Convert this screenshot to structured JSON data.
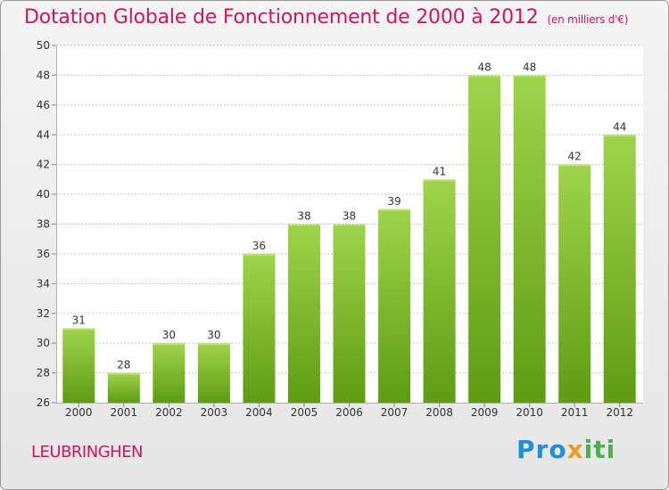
{
  "title": "Dotation Globale de Fonctionnement de 2000 à 2012",
  "subtitle": "(en milliers d'€)",
  "commune": "LEUBRINGHEN",
  "logo": {
    "part1": "Pro",
    "part2": "x",
    "part3": "iti"
  },
  "colors": {
    "title": "#d4145a",
    "bar_top": "#9fd44a",
    "bar_bottom": "#5e9c14",
    "grid": "#c8c8c8"
  },
  "chart_data": {
    "type": "bar",
    "categories": [
      "2000",
      "2001",
      "2002",
      "2003",
      "2004",
      "2005",
      "2006",
      "2007",
      "2008",
      "2009",
      "2010",
      "2011",
      "2012"
    ],
    "values": [
      31,
      28,
      30,
      30,
      36,
      38,
      38,
      39,
      41,
      48,
      48,
      42,
      44
    ],
    "title": "Dotation Globale de Fonctionnement de 2000 à 2012",
    "subtitle": "(en milliers d'€)",
    "ylim": [
      26,
      50
    ],
    "yticks": [
      26,
      28,
      30,
      32,
      34,
      36,
      38,
      40,
      42,
      44,
      46,
      48,
      50
    ],
    "grid": true,
    "data_labels": true
  }
}
